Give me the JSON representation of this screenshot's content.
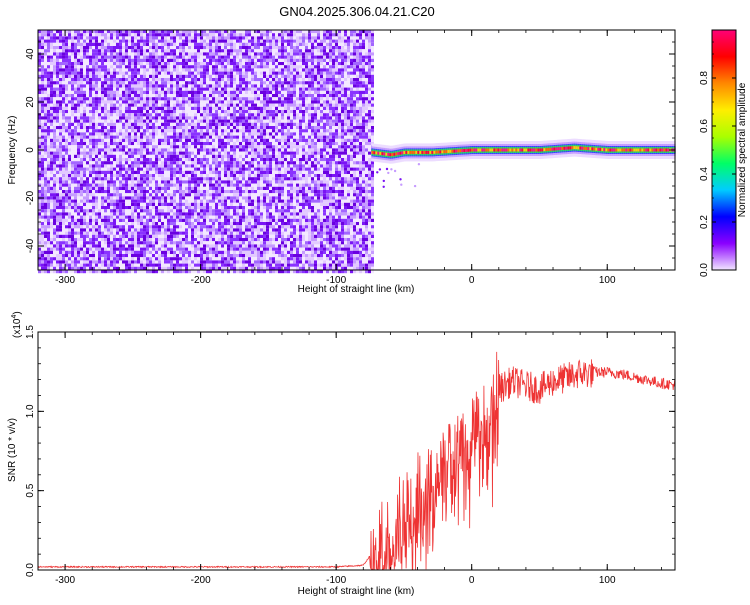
{
  "title": "GN04.2025.306.04.21.C20",
  "chart_data": [
    {
      "type": "heatmap",
      "name": "spectrogram",
      "xlabel": "Height of straight line (km)",
      "ylabel": "Frequency (Hz)",
      "xlim": [
        -320,
        150
      ],
      "ylim": [
        -50,
        50
      ],
      "x_ticks": [
        -300,
        -200,
        -100,
        0,
        100
      ],
      "x_tick_labels": [
        "-300",
        "-200",
        "-100",
        "0",
        "100"
      ],
      "y_ticks": [
        -40,
        -20,
        0,
        20,
        40
      ],
      "y_tick_labels": [
        "-40",
        "-20",
        "0",
        "20",
        "40"
      ],
      "noise_region_x": [
        -320,
        -74
      ],
      "signal_start_x": -74,
      "signal_frequency_hz": 0,
      "signal_track": [
        {
          "x": -74,
          "y": -1
        },
        {
          "x": -60,
          "y": -2
        },
        {
          "x": -50,
          "y": -1
        },
        {
          "x": -30,
          "y": -1
        },
        {
          "x": 0,
          "y": 0
        },
        {
          "x": 50,
          "y": 0
        },
        {
          "x": 75,
          "y": 1
        },
        {
          "x": 100,
          "y": 0
        },
        {
          "x": 150,
          "y": 0
        }
      ],
      "colorbar": {
        "label": "Normalized spectral amplitude",
        "range": [
          0,
          1
        ],
        "ticks": [
          0.0,
          0.2,
          0.4,
          0.6,
          0.8
        ],
        "tick_labels": [
          "0.0",
          "0.2",
          "0.4",
          "0.6",
          "0.8"
        ],
        "colors": [
          "#f2e6ff",
          "#8a00ff",
          "#0000ff",
          "#00ccff",
          "#00ff66",
          "#aaff00",
          "#ffee00",
          "#ff8800",
          "#ff0000",
          "#ff0077"
        ]
      }
    },
    {
      "type": "line",
      "name": "snr",
      "xlabel": "Height of straight line (km)",
      "ylabel": "SNR (10 * v/v)",
      "exponent_label": "(x10",
      "exponent_value": "4",
      "exponent_close": ")",
      "xlim": [
        -320,
        150
      ],
      "ylim": [
        0,
        1.5
      ],
      "x_ticks": [
        -300,
        -200,
        -100,
        0,
        100
      ],
      "x_tick_labels": [
        "-300",
        "-200",
        "-100",
        "0",
        "100"
      ],
      "y_ticks": [
        0.0,
        0.5,
        1.0,
        1.5
      ],
      "y_tick_labels": [
        "0.0",
        "0.5",
        "1.0",
        "1.5"
      ],
      "color": "#ee3333",
      "series": [
        {
          "name": "SNR",
          "x": [
            -320,
            -250,
            -200,
            -150,
            -100,
            -80,
            -70,
            -60,
            -50,
            -40,
            -30,
            -20,
            -10,
            0,
            10,
            20,
            30,
            40,
            50,
            60,
            70,
            80,
            90,
            100,
            110,
            120,
            130,
            140,
            150
          ],
          "y": [
            0.02,
            0.02,
            0.02,
            0.02,
            0.02,
            0.03,
            0.15,
            0.3,
            0.4,
            0.5,
            0.55,
            0.7,
            0.8,
            0.9,
            1.0,
            1.15,
            1.2,
            1.17,
            1.15,
            1.2,
            1.22,
            1.25,
            1.25,
            1.25,
            1.24,
            1.22,
            1.2,
            1.18,
            1.17
          ]
        }
      ]
    }
  ]
}
